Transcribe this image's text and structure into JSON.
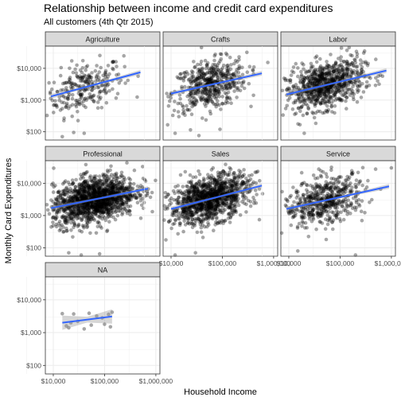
{
  "chart_data": {
    "type": "scatter",
    "title": "Relationship between income and credit card expenditures",
    "subtitle": "All customers (4th Qtr 2015)",
    "xlabel": "Household Income",
    "ylabel": "Monthly Card Expenditures",
    "x_scale": "log10",
    "y_scale": "log10",
    "xlim": [
      7000,
      1200000
    ],
    "ylim": [
      55,
      50000
    ],
    "x_ticks": [
      10000,
      100000,
      1000000
    ],
    "x_tick_labels": [
      "$10,000",
      "$100,000",
      "$1,000,000"
    ],
    "y_ticks": [
      100,
      1000,
      10000
    ],
    "y_tick_labels": [
      "$100",
      "$1,000",
      "$10,000"
    ],
    "grid": true,
    "facet_layout": "3x3 wrap",
    "point_color": "#000000",
    "point_alpha": 0.35,
    "fit_line_color": "#3366FF",
    "ribbon_color": "#999999",
    "panels": [
      {
        "label": "Agriculture",
        "fit": {
          "x": [
            9000,
            500000
          ],
          "y": [
            1300,
            7500
          ]
        },
        "cloud": {
          "n": 260,
          "cx_log": 4.6,
          "sx_log": 0.38,
          "cy_log": 3.35,
          "sy_log": 0.42
        },
        "outliers": [
          [
            15000,
            70
          ],
          [
            40000,
            90
          ],
          [
            25000,
            95
          ]
        ]
      },
      {
        "label": "Crafts",
        "fit": {
          "x": [
            10000,
            600000
          ],
          "y": [
            1600,
            7000
          ]
        },
        "cloud": {
          "n": 520,
          "cx_log": 4.75,
          "sx_log": 0.36,
          "cy_log": 3.3,
          "sy_log": 0.42
        },
        "outliers": [
          [
            60000,
            55
          ],
          [
            12000,
            90
          ],
          [
            90000,
            120
          ]
        ]
      },
      {
        "label": "Labor",
        "fit": {
          "x": [
            9000,
            800000
          ],
          "y": [
            1500,
            8500
          ]
        },
        "cloud": {
          "n": 820,
          "cx_log": 4.7,
          "sx_log": 0.38,
          "cy_log": 3.3,
          "sy_log": 0.4
        },
        "outliers": [
          [
            150000,
            45000
          ],
          [
            20000,
            90
          ],
          [
            300000,
            35000
          ]
        ]
      },
      {
        "label": "Professional",
        "fit": {
          "x": [
            9000,
            700000
          ],
          "y": [
            1700,
            6800
          ]
        },
        "cloud": {
          "n": 1500,
          "cx_log": 4.8,
          "sx_log": 0.4,
          "cy_log": 3.45,
          "sy_log": 0.38
        },
        "outliers": [
          [
            20000,
            70
          ],
          [
            35000,
            60
          ],
          [
            80000,
            65
          ]
        ]
      },
      {
        "label": "Sales",
        "fit": {
          "x": [
            10000,
            600000
          ],
          "y": [
            1600,
            8500
          ]
        },
        "cloud": {
          "n": 1200,
          "cx_log": 4.75,
          "sx_log": 0.38,
          "cy_log": 3.45,
          "sy_log": 0.38
        },
        "outliers": [
          [
            12000,
            60
          ],
          [
            30000,
            70
          ]
        ]
      },
      {
        "label": "Service",
        "fit": {
          "x": [
            9000,
            900000
          ],
          "y": [
            1600,
            8000
          ]
        },
        "cloud": {
          "n": 560,
          "cx_log": 4.7,
          "sx_log": 0.4,
          "cy_log": 3.3,
          "sy_log": 0.4
        },
        "outliers": [
          [
            1000000,
            30000
          ],
          [
            15000,
            80
          ],
          [
            200000,
            60
          ]
        ]
      },
      {
        "label": "NA",
        "fit": {
          "x": [
            15000,
            140000
          ],
          "y": [
            2000,
            3100
          ]
        },
        "points": [
          [
            15000,
            3800
          ],
          [
            18000,
            1600
          ],
          [
            20000,
            1400
          ],
          [
            22000,
            2000
          ],
          [
            25000,
            3700
          ],
          [
            30000,
            2200
          ],
          [
            40000,
            1300
          ],
          [
            50000,
            3900
          ],
          [
            55000,
            1700
          ],
          [
            70000,
            3200
          ],
          [
            90000,
            2800
          ],
          [
            100000,
            1800
          ],
          [
            120000,
            3600
          ],
          [
            130000,
            1500
          ],
          [
            140000,
            4200
          ]
        ]
      }
    ]
  }
}
